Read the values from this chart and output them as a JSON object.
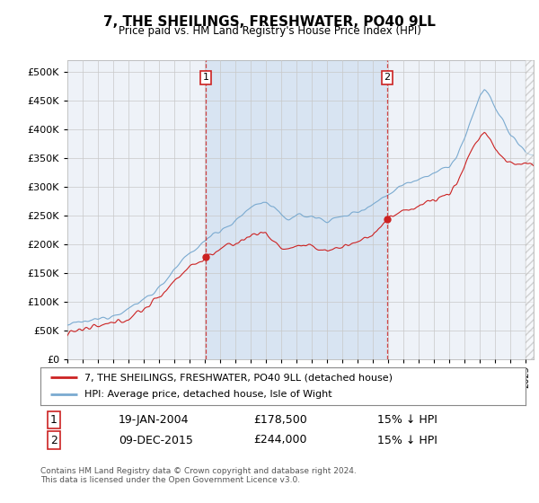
{
  "title": "7, THE SHEILINGS, FRESHWATER, PO40 9LL",
  "subtitle": "Price paid vs. HM Land Registry's House Price Index (HPI)",
  "ytick_values": [
    0,
    50000,
    100000,
    150000,
    200000,
    250000,
    300000,
    350000,
    400000,
    450000,
    500000
  ],
  "ylim": [
    0,
    520000
  ],
  "xlim_start": 1995.0,
  "xlim_end": 2025.5,
  "xtick_years": [
    1995,
    1996,
    1997,
    1998,
    1999,
    2000,
    2001,
    2002,
    2003,
    2004,
    2005,
    2006,
    2007,
    2008,
    2009,
    2010,
    2011,
    2012,
    2013,
    2014,
    2015,
    2016,
    2017,
    2018,
    2019,
    2020,
    2021,
    2022,
    2023,
    2024,
    2025
  ],
  "hpi_line_color": "#7aaad0",
  "price_line_color": "#cc2222",
  "purchase1_x": 2004.05,
  "purchase1_y": 178500,
  "purchase2_x": 2015.92,
  "purchase2_y": 244000,
  "legend_line1": "7, THE SHEILINGS, FRESHWATER, PO40 9LL (detached house)",
  "legend_line2": "HPI: Average price, detached house, Isle of Wight",
  "table_row1": [
    "1",
    "19-JAN-2004",
    "£178,500",
    "15% ↓ HPI"
  ],
  "table_row2": [
    "2",
    "09-DEC-2015",
    "£244,000",
    "15% ↓ HPI"
  ],
  "footnote": "Contains HM Land Registry data © Crown copyright and database right 2024.\nThis data is licensed under the Open Government Licence v3.0.",
  "plot_bg_color": "#eef2f8",
  "shade_color": "#d0dff0"
}
